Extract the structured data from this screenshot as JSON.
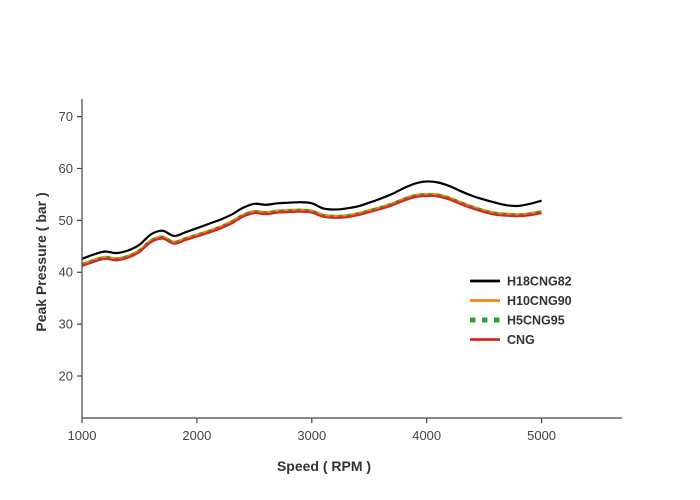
{
  "figure": {
    "background_color": "#ffffff",
    "axis_line_color": "#444444",
    "tick_label_color": "#444444",
    "axis_title_color": "#333333",
    "legend_text_color": "#333333"
  },
  "chart_data": {
    "type": "line",
    "title": "",
    "xlabel": "Speed ( RPM )",
    "ylabel": "Peak Pressure ( bar )",
    "xlim": [
      1000,
      5700
    ],
    "ylim": [
      11.9,
      73.4
    ],
    "xticks": [
      1000,
      2000,
      3000,
      4000,
      5000
    ],
    "yticks": [
      20,
      30,
      40,
      50,
      60,
      70
    ],
    "grid": false,
    "legend_position": "right-middle",
    "x": [
      1000,
      1100,
      1200,
      1300,
      1400,
      1500,
      1600,
      1700,
      1800,
      1900,
      2000,
      2100,
      2200,
      2300,
      2400,
      2500,
      2600,
      2700,
      2800,
      2900,
      3000,
      3100,
      3200,
      3300,
      3400,
      3500,
      3600,
      3700,
      3800,
      3900,
      4000,
      4100,
      4200,
      4300,
      4400,
      4500,
      4600,
      4700,
      4800,
      4900,
      5000
    ],
    "series": [
      {
        "name": "H18CNG82",
        "color": "#000000",
        "style": "solid",
        "width": 2.2,
        "values": [
          42.6,
          43.4,
          44.0,
          43.7,
          44.2,
          45.3,
          47.3,
          48.0,
          47.0,
          47.7,
          48.5,
          49.3,
          50.1,
          51.1,
          52.4,
          53.2,
          53.0,
          53.3,
          53.4,
          53.5,
          53.3,
          52.3,
          52.1,
          52.3,
          52.7,
          53.4,
          54.2,
          55.1,
          56.2,
          57.1,
          57.5,
          57.3,
          56.6,
          55.6,
          54.7,
          54.0,
          53.4,
          52.9,
          52.8,
          53.2,
          53.8
        ]
      },
      {
        "name": "H10CNG90",
        "color": "#ff7f0e",
        "style": "solid",
        "width": 2.0,
        "values": [
          41.6,
          42.4,
          43.0,
          42.7,
          43.2,
          44.3,
          46.2,
          46.9,
          45.9,
          46.6,
          47.3,
          48.0,
          48.8,
          49.8,
          51.1,
          51.8,
          51.6,
          51.9,
          52.0,
          52.1,
          51.9,
          51.1,
          50.9,
          51.0,
          51.4,
          52.0,
          52.6,
          53.3,
          54.2,
          54.9,
          55.1,
          55.0,
          54.4,
          53.5,
          52.7,
          52.0,
          51.5,
          51.3,
          51.2,
          51.4,
          51.8
        ]
      },
      {
        "name": "H5CNG95",
        "color": "#2ca02c",
        "style": "dashed",
        "width": 3.6,
        "values": [
          41.4,
          42.2,
          42.8,
          42.5,
          43.0,
          44.1,
          46.0,
          46.7,
          45.7,
          46.4,
          47.1,
          47.8,
          48.6,
          49.6,
          50.9,
          51.6,
          51.4,
          51.7,
          51.8,
          51.9,
          51.7,
          50.9,
          50.7,
          50.8,
          51.2,
          51.8,
          52.4,
          53.1,
          54.0,
          54.7,
          54.9,
          54.8,
          54.2,
          53.3,
          52.5,
          51.8,
          51.3,
          51.1,
          51.0,
          51.2,
          51.6
        ]
      },
      {
        "name": "CNG",
        "color": "#d62728",
        "style": "solid",
        "width": 2.2,
        "values": [
          41.2,
          42.0,
          42.6,
          42.3,
          42.8,
          43.9,
          45.8,
          46.5,
          45.5,
          46.2,
          46.9,
          47.6,
          48.4,
          49.4,
          50.7,
          51.4,
          51.2,
          51.5,
          51.6,
          51.7,
          51.5,
          50.7,
          50.5,
          50.6,
          51.0,
          51.6,
          52.2,
          52.9,
          53.8,
          54.5,
          54.7,
          54.6,
          54.0,
          53.1,
          52.3,
          51.6,
          51.1,
          50.9,
          50.8,
          51.0,
          51.4
        ]
      }
    ]
  }
}
